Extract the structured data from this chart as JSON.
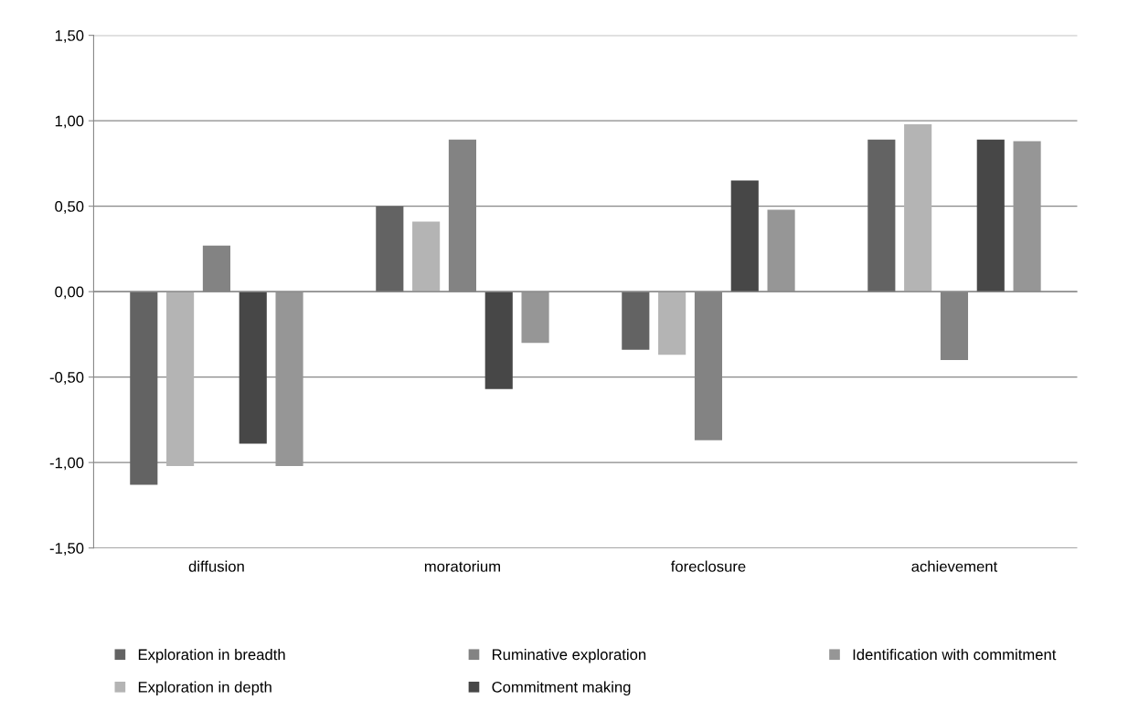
{
  "chart_data": {
    "type": "bar",
    "categories": [
      "diffusion",
      "moratorium",
      "foreclosure",
      "achievement"
    ],
    "series": [
      {
        "name": "Exploration in breadth",
        "color": "#636363",
        "values": [
          -1.13,
          0.5,
          -0.34,
          0.89
        ]
      },
      {
        "name": "Exploration in depth",
        "color": "#b4b4b4",
        "values": [
          -1.02,
          0.41,
          -0.37,
          0.98
        ]
      },
      {
        "name": "Ruminative exploration",
        "color": "#838383",
        "values": [
          0.27,
          0.89,
          -0.87,
          -0.4
        ]
      },
      {
        "name": "Commitment making",
        "color": "#474747",
        "values": [
          -0.89,
          -0.57,
          0.65,
          0.89
        ]
      },
      {
        "name": "Identification with commitment",
        "color": "#969696",
        "values": [
          -1.02,
          -0.3,
          0.48,
          0.88
        ]
      }
    ],
    "ylim": [
      -1.5,
      1.5
    ],
    "yticks": [
      {
        "value": -1.5,
        "label": "-1,50"
      },
      {
        "value": -1.0,
        "label": "-1,00"
      },
      {
        "value": -0.5,
        "label": "-0,50"
      },
      {
        "value": 0,
        "label": "0,00"
      },
      {
        "value": 0.5,
        "label": "0,50"
      },
      {
        "value": 1.0,
        "label": "1,00"
      },
      {
        "value": 1.5,
        "label": "1,50"
      }
    ],
    "grid": "y",
    "legend": "bottom"
  }
}
